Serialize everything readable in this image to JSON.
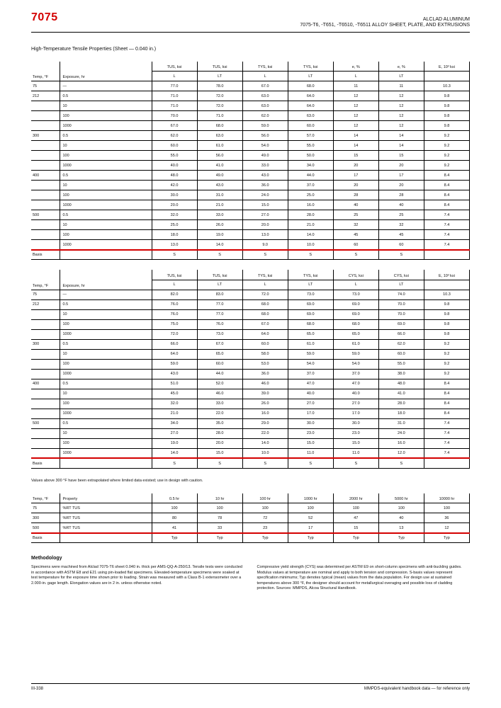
{
  "header": {
    "alloy_code": "7075",
    "alloy_name_line1": "ALCLAD ALUMINUM",
    "alloy_name_line2": "7075-T6, -T651, -T6510, -T6511 ALLOY SHEET, PLATE, AND EXTRUSIONS",
    "accent_color": "#d40000"
  },
  "page_title": "High-Temperature Tensile Properties (Sheet — 0.040 in.)",
  "table1": {
    "title_col0": "Temp, °F",
    "title_col1": "Exposure, hr",
    "data_col_labels": [
      "TUS, ksi",
      "TUS, ksi",
      "TYS, ksi",
      "TYS, ksi",
      "e, %",
      "e, %",
      "E, 10³ ksi"
    ],
    "data_col_sub": [
      "L",
      "LT",
      "L",
      "LT",
      "L",
      "LT",
      ""
    ],
    "rows": [
      [
        "75",
        "—",
        "77.0",
        "78.0",
        "67.0",
        "68.0",
        "11",
        "11",
        "10.3"
      ],
      [
        "212",
        "0.5",
        "71.0",
        "72.0",
        "63.0",
        "64.0",
        "12",
        "12",
        "9.8"
      ],
      [
        "",
        "10",
        "71.0",
        "72.0",
        "63.0",
        "64.0",
        "12",
        "12",
        "9.8"
      ],
      [
        "",
        "100",
        "70.0",
        "71.0",
        "62.0",
        "63.0",
        "12",
        "12",
        "9.8"
      ],
      [
        "",
        "1000",
        "67.0",
        "68.0",
        "59.0",
        "60.0",
        "12",
        "12",
        "9.8"
      ],
      [
        "300",
        "0.5",
        "62.0",
        "63.0",
        "56.0",
        "57.0",
        "14",
        "14",
        "9.2"
      ],
      [
        "",
        "10",
        "60.0",
        "61.0",
        "54.0",
        "55.0",
        "14",
        "14",
        "9.2"
      ],
      [
        "",
        "100",
        "55.0",
        "56.0",
        "49.0",
        "50.0",
        "15",
        "15",
        "9.2"
      ],
      [
        "",
        "1000",
        "40.0",
        "41.0",
        "33.0",
        "34.0",
        "20",
        "20",
        "9.2"
      ],
      [
        "400",
        "0.5",
        "48.0",
        "49.0",
        "43.0",
        "44.0",
        "17",
        "17",
        "8.4"
      ],
      [
        "",
        "10",
        "42.0",
        "43.0",
        "36.0",
        "37.0",
        "20",
        "20",
        "8.4"
      ],
      [
        "",
        "100",
        "30.0",
        "31.0",
        "24.0",
        "25.0",
        "28",
        "28",
        "8.4"
      ],
      [
        "",
        "1000",
        "20.0",
        "21.0",
        "15.0",
        "16.0",
        "40",
        "40",
        "8.4"
      ],
      [
        "500",
        "0.5",
        "32.0",
        "33.0",
        "27.0",
        "28.0",
        "25",
        "25",
        "7.4"
      ],
      [
        "",
        "10",
        "25.0",
        "26.0",
        "20.0",
        "21.0",
        "32",
        "32",
        "7.4"
      ],
      [
        "",
        "100",
        "18.0",
        "19.0",
        "13.0",
        "14.0",
        "45",
        "45",
        "7.4"
      ],
      [
        "",
        "1000",
        "13.0",
        "14.0",
        "9.0",
        "10.0",
        "60",
        "60",
        "7.4"
      ]
    ],
    "basis": [
      "Basis",
      "",
      "S",
      "S",
      "S",
      "S",
      "S",
      "S",
      ""
    ]
  },
  "table2": {
    "title_col0": "Temp, °F",
    "title_col1": "Exposure, hr",
    "data_col_labels": [
      "TUS, ksi",
      "TUS, ksi",
      "TYS, ksi",
      "TYS, ksi",
      "CYS, ksi",
      "CYS, ksi",
      "E, 10³ ksi"
    ],
    "data_col_sub": [
      "L",
      "LT",
      "L",
      "LT",
      "L",
      "LT",
      ""
    ],
    "rows": [
      [
        "75",
        "—",
        "82.0",
        "83.0",
        "72.0",
        "73.0",
        "73.0",
        "74.0",
        "10.3"
      ],
      [
        "212",
        "0.5",
        "76.0",
        "77.0",
        "68.0",
        "69.0",
        "69.0",
        "70.0",
        "9.8"
      ],
      [
        "",
        "10",
        "76.0",
        "77.0",
        "68.0",
        "69.0",
        "69.0",
        "70.0",
        "9.8"
      ],
      [
        "",
        "100",
        "75.0",
        "76.0",
        "67.0",
        "68.0",
        "68.0",
        "69.0",
        "9.8"
      ],
      [
        "",
        "1000",
        "72.0",
        "73.0",
        "64.0",
        "65.0",
        "65.0",
        "66.0",
        "9.8"
      ],
      [
        "300",
        "0.5",
        "66.0",
        "67.0",
        "60.0",
        "61.0",
        "61.0",
        "62.0",
        "9.2"
      ],
      [
        "",
        "10",
        "64.0",
        "65.0",
        "58.0",
        "59.0",
        "59.0",
        "60.0",
        "9.2"
      ],
      [
        "",
        "100",
        "59.0",
        "60.0",
        "53.0",
        "54.0",
        "54.0",
        "55.0",
        "9.2"
      ],
      [
        "",
        "1000",
        "43.0",
        "44.0",
        "36.0",
        "37.0",
        "37.0",
        "38.0",
        "9.2"
      ],
      [
        "400",
        "0.5",
        "51.0",
        "52.0",
        "46.0",
        "47.0",
        "47.0",
        "48.0",
        "8.4"
      ],
      [
        "",
        "10",
        "45.0",
        "46.0",
        "39.0",
        "40.0",
        "40.0",
        "41.0",
        "8.4"
      ],
      [
        "",
        "100",
        "32.0",
        "33.0",
        "26.0",
        "27.0",
        "27.0",
        "28.0",
        "8.4"
      ],
      [
        "",
        "1000",
        "21.0",
        "22.0",
        "16.0",
        "17.0",
        "17.0",
        "18.0",
        "8.4"
      ],
      [
        "500",
        "0.5",
        "34.0",
        "35.0",
        "29.0",
        "30.0",
        "30.0",
        "31.0",
        "7.4"
      ],
      [
        "",
        "10",
        "27.0",
        "28.0",
        "22.0",
        "23.0",
        "23.0",
        "24.0",
        "7.4"
      ],
      [
        "",
        "100",
        "19.0",
        "20.0",
        "14.0",
        "15.0",
        "15.0",
        "16.0",
        "7.4"
      ],
      [
        "",
        "1000",
        "14.0",
        "15.0",
        "10.0",
        "11.0",
        "11.0",
        "12.0",
        "7.4"
      ]
    ],
    "basis": [
      "Basis",
      "",
      "S",
      "S",
      "S",
      "S",
      "S",
      "S",
      ""
    ]
  },
  "table2_note": "Values above 300 °F have been extrapolated where limited data existed; use in design with caution.",
  "table3": {
    "title_col0": "Temp, °F",
    "title_col1": "Property",
    "data_col_labels": [
      "0.5 hr",
      "10 hr",
      "100 hr",
      "1000 hr",
      "2000 hr",
      "5000 hr",
      "10000 hr"
    ],
    "rows": [
      [
        "75",
        "%RT TUS",
        "100",
        "100",
        "100",
        "100",
        "100",
        "100",
        "100"
      ],
      [
        "300",
        "%RT TUS",
        "80",
        "78",
        "72",
        "52",
        "47",
        "40",
        "36"
      ],
      [
        "500",
        "%RT TUS",
        "41",
        "33",
        "23",
        "17",
        "15",
        "13",
        "12"
      ]
    ],
    "basis": [
      "Basis",
      "",
      "Typ",
      "Typ",
      "Typ",
      "Typ",
      "Typ",
      "Typ",
      "Typ"
    ]
  },
  "methodology": {
    "heading": "Methodology",
    "col1": "Specimens were machined from Alclad 7075-T6 sheet 0.040 in. thick per AMS-QQ-A-250/13. Tensile tests were conducted in accordance with ASTM E8 and E21 using pin-loaded flat specimens. Elevated-temperature specimens were soaked at test temperature for the exposure time shown prior to loading. Strain was measured with a Class B-1 extensometer over a 2.000-in. gage length. Elongation values are in 2 in. unless otherwise noted.",
    "col2": "Compressive yield strength (CYS) was determined per ASTM E9 on short-column specimens with anti-buckling guides. Modulus values at temperature are nominal and apply to both tension and compression. S-basis values represent specification minimums; Typ denotes typical (mean) values from the data population. For design use at sustained temperatures above 300 °F, the designer should account for metallurgical overaging and possible loss of cladding protection. Sources: MMPDS, Alcoa Structural Handbook."
  },
  "footer": {
    "left": "III-338",
    "right": "MMPDS-equivalent handbook data — for reference only"
  }
}
